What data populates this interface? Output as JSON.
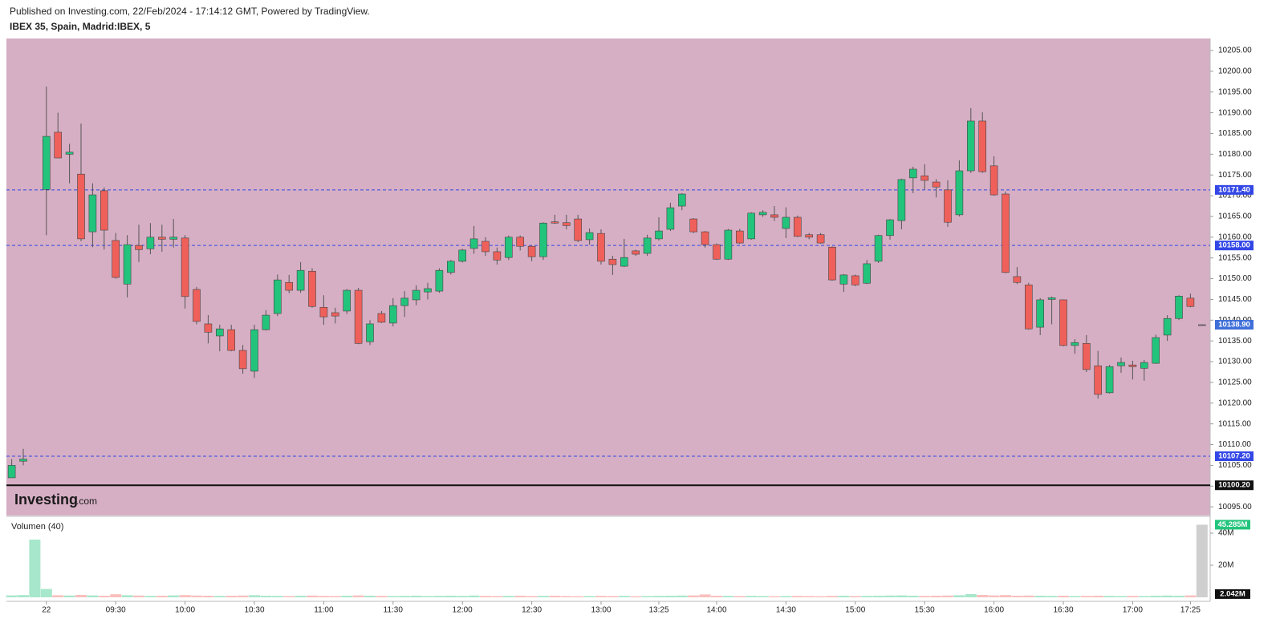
{
  "chart_data": {
    "type": "candlestick",
    "subtitle": "Published on Investing.com, 22/Feb/2024 - 17:14:12 GMT, Powered by TradingView.",
    "title": "IBEX 35, Spain, Madrid:IBEX, 5",
    "watermark": [
      "Investing",
      ".com"
    ],
    "volume_title": "Volumen (40)",
    "colors": {
      "up": "#22c47c",
      "down": "#f0605a",
      "flat": "#888888",
      "background": "#d6afc4"
    },
    "grid": false,
    "categories": [
      null,
      null,
      null,
      "22",
      null,
      null,
      null,
      null,
      null,
      "09:30",
      null,
      null,
      null,
      null,
      null,
      "10:00",
      null,
      null,
      null,
      null,
      null,
      "10:30",
      null,
      null,
      null,
      null,
      null,
      "11:00",
      null,
      null,
      null,
      null,
      null,
      "11:30",
      null,
      null,
      null,
      null,
      null,
      "12:00",
      null,
      null,
      null,
      null,
      null,
      "12:30",
      null,
      null,
      null,
      null,
      null,
      "13:00",
      null,
      null,
      null,
      null,
      "13:25",
      null,
      null,
      null,
      null,
      "14:00",
      null,
      null,
      null,
      null,
      null,
      "14:30",
      null,
      null,
      null,
      null,
      null,
      "15:00",
      null,
      null,
      null,
      null,
      null,
      "15:30",
      null,
      null,
      null,
      null,
      null,
      "16:00",
      null,
      null,
      null,
      null,
      null,
      "16:30",
      null,
      null,
      null,
      null,
      null,
      "17:00",
      null,
      null,
      null,
      null,
      "17:25",
      null
    ],
    "open": [
      10102,
      10106,
      null,
      10171.5,
      10185.3,
      10180,
      10175.2,
      10161.3,
      10171.2,
      10159.2,
      10148.7,
      10158,
      10157.2,
      10160,
      10159.5,
      10159.8,
      10147.4,
      10139.1,
      10136.2,
      10137.7,
      10132.7,
      10127.7,
      10137.7,
      10141.6,
      10149.1,
      10147.2,
      10151.8,
      10143.1,
      10141.8,
      10142.2,
      10147.2,
      10134.8,
      10141.6,
      10139.3,
      10143.5,
      10144.9,
      10146.8,
      10147,
      10151.5,
      10154.2,
      10157.3,
      10159,
      10156.5,
      10155.1,
      10160,
      10157.8,
      10155.3,
      10163.7,
      10163.5,
      10164.4,
      10159.4,
      10160.9,
      10154.7,
      10153,
      10156.7,
      10156.1,
      10159.6,
      10161.9,
      10167.5,
      10164.4,
      10161.3,
      10158.2,
      10154.7,
      10161.5,
      10159.6,
      10165.4,
      10165.4,
      10162.1,
      10164.8,
      10160.6,
      10160.6,
      10157.6,
      10148.7,
      10150.7,
      10148.9,
      10154.2,
      10160.4,
      10164,
      10174.3,
      10174.8,
      10173.3,
      10171.4,
      10165.4,
      10176,
      10188,
      10177.2,
      10170.4,
      10150.5,
      10148.5,
      10138.3,
      10145,
      10144.9,
      10133.9,
      10134.4,
      10129,
      10122.5,
      10129,
      10129.2,
      10128.4,
      10129.6,
      10136.4,
      10140.4,
      10145.3,
      10138.9
    ],
    "high": [
      10106.5,
      10109,
      null,
      10196.3,
      10190,
      10182.5,
      10187.4,
      10173,
      10172,
      10161,
      10160.5,
      10163,
      10163.4,
      10163,
      10164.4,
      10160.5,
      10148,
      10141.2,
      10138.9,
      10138.9,
      10134,
      10138.9,
      10142.4,
      10151,
      10150.9,
      10154,
      10152.5,
      10146,
      10143,
      10147.5,
      10147.8,
      10140,
      10142.2,
      10145.3,
      10147,
      10148.4,
      10149,
      10152.5,
      10154.5,
      10157.2,
      10162.7,
      10160,
      10157.5,
      10160.4,
      10160.4,
      10158,
      10163.6,
      10165.4,
      10165.4,
      10165.4,
      10162.1,
      10161.9,
      10155.5,
      10159.6,
      10157,
      10160.6,
      10164.8,
      10168.3,
      10170.6,
      10164.6,
      10161.5,
      10158.5,
      10162,
      10162,
      10166,
      10166.5,
      10167.5,
      10167.2,
      10165.2,
      10161,
      10161,
      10157.8,
      10151.1,
      10151,
      10154.5,
      10160.6,
      10164.4,
      10174.1,
      10177,
      10177.6,
      10174,
      10173.7,
      10178.5,
      10191.1,
      10190.1,
      10179.5,
      10171,
      10152.8,
      10149,
      10145.3,
      10145.7,
      10145,
      10135.4,
      10136.4,
      10132.6,
      10129.2,
      10131,
      10130.2,
      10130.4,
      10136.5,
      10141.2,
      10146,
      10146.4,
      10138.9
    ],
    "low": [
      10102,
      10105,
      null,
      10160.5,
      10179,
      10173,
      10159,
      10157.6,
      10157,
      10150,
      10145.5,
      10154,
      10155.9,
      10156.5,
      10157.5,
      10142.8,
      10139,
      10134.4,
      10132.5,
      10132.5,
      10127.1,
      10126.1,
      10137.5,
      10141,
      10146.5,
      10146.6,
      10143,
      10138.9,
      10139.2,
      10141.5,
      10134.2,
      10134,
      10139.3,
      10138.5,
      10140.8,
      10143.6,
      10145,
      10146.6,
      10151,
      10153.9,
      10156,
      10155.5,
      10153.4,
      10154.5,
      10156.8,
      10154.2,
      10154.5,
      10163.2,
      10161.9,
      10158.8,
      10158.2,
      10153.4,
      10150.9,
      10152.8,
      10155.5,
      10155.5,
      10159.2,
      10161.5,
      10166.5,
      10161,
      10157.5,
      10154.5,
      10154.5,
      10158.4,
      10159.4,
      10164.9,
      10163.9,
      10159.8,
      10160,
      10159.5,
      10158.4,
      10149.5,
      10146.8,
      10148.2,
      10148.7,
      10153.8,
      10159.4,
      10161.9,
      10170.6,
      10171.5,
      10169.6,
      10162.5,
      10165,
      10175.5,
      10175.5,
      10170,
      10151.3,
      10148.7,
      10137.7,
      10136.4,
      10139,
      10133.7,
      10131.9,
      10127.5,
      10121.1,
      10122.3,
      10127.3,
      10125.7,
      10125.4,
      10129.5,
      10135,
      10140,
      10143.1,
      10138.9
    ],
    "close": [
      10105,
      10106.5,
      null,
      10184.3,
      10179.1,
      10180.5,
      10159.6,
      10170.2,
      10161.7,
      10150.3,
      10158.2,
      10157,
      10160,
      10159.5,
      10160,
      10145.7,
      10139.7,
      10137.1,
      10137.9,
      10132.7,
      10128.3,
      10137.7,
      10141.2,
      10149.7,
      10147.2,
      10152,
      10143.3,
      10140.8,
      10141,
      10147.2,
      10134.4,
      10139.1,
      10139.5,
      10143.5,
      10145.3,
      10147.2,
      10147.6,
      10152,
      10154.2,
      10156.9,
      10159.6,
      10156.5,
      10154.5,
      10160,
      10157.8,
      10155.3,
      10163.4,
      10163.4,
      10162.8,
      10159.2,
      10161.1,
      10154.2,
      10153.4,
      10155.1,
      10155.9,
      10159.8,
      10161.5,
      10167.1,
      10170.4,
      10161.3,
      10158.2,
      10154.7,
      10161.7,
      10158.6,
      10165.8,
      10166,
      10164.8,
      10164.8,
      10160.2,
      10160,
      10158.6,
      10149.7,
      10150.9,
      10148.5,
      10153.6,
      10160.4,
      10164.2,
      10173.9,
      10176.4,
      10173.7,
      10172.1,
      10163.6,
      10176,
      10188,
      10175.8,
      10170.2,
      10151.5,
      10149.1,
      10137.9,
      10144.9,
      10145.4,
      10133.9,
      10134.6,
      10128.1,
      10122.1,
      10128.8,
      10129.8,
      10128.8,
      10129.8,
      10135.8,
      10140.4,
      10145.8,
      10143.3,
      10138.9
    ],
    "volume": [
      1200000,
      1400000,
      36000000,
      5200000,
      1300000,
      1100000,
      1500000,
      1200000,
      1000000,
      1900000,
      1300000,
      1100000,
      900000,
      1000000,
      1200000,
      1400000,
      1100000,
      1000000,
      900000,
      1000000,
      1100000,
      1300000,
      1000000,
      900000,
      800000,
      1000000,
      1100000,
      900000,
      800000,
      1000000,
      1200000,
      1000000,
      900000,
      800000,
      900000,
      1000000,
      800000,
      900000,
      1000000,
      900000,
      1100000,
      900000,
      800000,
      900000,
      1000000,
      800000,
      900000,
      1000000,
      800000,
      700000,
      800000,
      900000,
      800000,
      900000,
      700000,
      800000,
      900000,
      1000000,
      1100000,
      1200000,
      1800000,
      1000000,
      900000,
      800000,
      900000,
      800000,
      700000,
      800000,
      900000,
      800000,
      700000,
      900000,
      1000000,
      800000,
      900000,
      1000000,
      1100000,
      1200000,
      1000000,
      900000,
      1000000,
      1100000,
      1300000,
      2000000,
      1500000,
      1200000,
      1400000,
      1000000,
      1100000,
      1000000,
      900000,
      1000000,
      800000,
      900000,
      1000000,
      900000,
      800000,
      900000,
      800000,
      1000000,
      1100000,
      1000000,
      1200000,
      45285000
    ],
    "ylim": [
      10092.9,
      10207.9
    ],
    "yticks": [
      {
        "value": 10095,
        "label": "10095.00"
      },
      {
        "value": 10100,
        "label": "10100.00"
      },
      {
        "value": 10105,
        "label": "10105.00"
      },
      {
        "value": 10110,
        "label": "10110.00"
      },
      {
        "value": 10115,
        "label": "10115.00"
      },
      {
        "value": 10120,
        "label": "10120.00"
      },
      {
        "value": 10125,
        "label": "10125.00"
      },
      {
        "value": 10130,
        "label": "10130.00"
      },
      {
        "value": 10135,
        "label": "10135.00"
      },
      {
        "value": 10140,
        "label": "10140.00"
      },
      {
        "value": 10145,
        "label": "10145.00"
      },
      {
        "value": 10150,
        "label": "10150.00"
      },
      {
        "value": 10155,
        "label": "10155.00"
      },
      {
        "value": 10160,
        "label": "10160.00"
      },
      {
        "value": 10165,
        "label": "10165.00"
      },
      {
        "value": 10170,
        "label": "10170.00"
      },
      {
        "value": 10175,
        "label": "10175.00"
      },
      {
        "value": 10180,
        "label": "10180.00"
      },
      {
        "value": 10185,
        "label": "10185.00"
      },
      {
        "value": 10190,
        "label": "10190.00"
      },
      {
        "value": 10195,
        "label": "10195.00"
      },
      {
        "value": 10200,
        "label": "10200.00"
      },
      {
        "value": 10205,
        "label": "10205.00"
      }
    ],
    "reference_lines": [
      {
        "value": 10171.4,
        "label": "10171.40",
        "color": "#3347e6",
        "dashed": true
      },
      {
        "value": 10158.0,
        "label": "10158.00",
        "color": "#3347e6",
        "dashed": true
      },
      {
        "value": 10107.2,
        "label": "10107.20",
        "color": "#3347e6",
        "dashed": true
      },
      {
        "value": 10100.2,
        "label": "10100.20",
        "color": "#111111",
        "dashed": false
      }
    ],
    "last_price": {
      "value": 10138.9,
      "label": "10138.90",
      "color": "#3f6fd8"
    },
    "volume_ylim": [
      0,
      50000000
    ],
    "volume_yticks": [
      {
        "value": 20000000,
        "label": "20M"
      },
      {
        "value": 40000000,
        "label": "40M"
      }
    ],
    "volume_markers": [
      {
        "value": 45285000,
        "label": "45.285M",
        "color": "#22c47c"
      },
      {
        "value": 2042000,
        "label": "2.042M",
        "color": "#111111"
      }
    ]
  }
}
